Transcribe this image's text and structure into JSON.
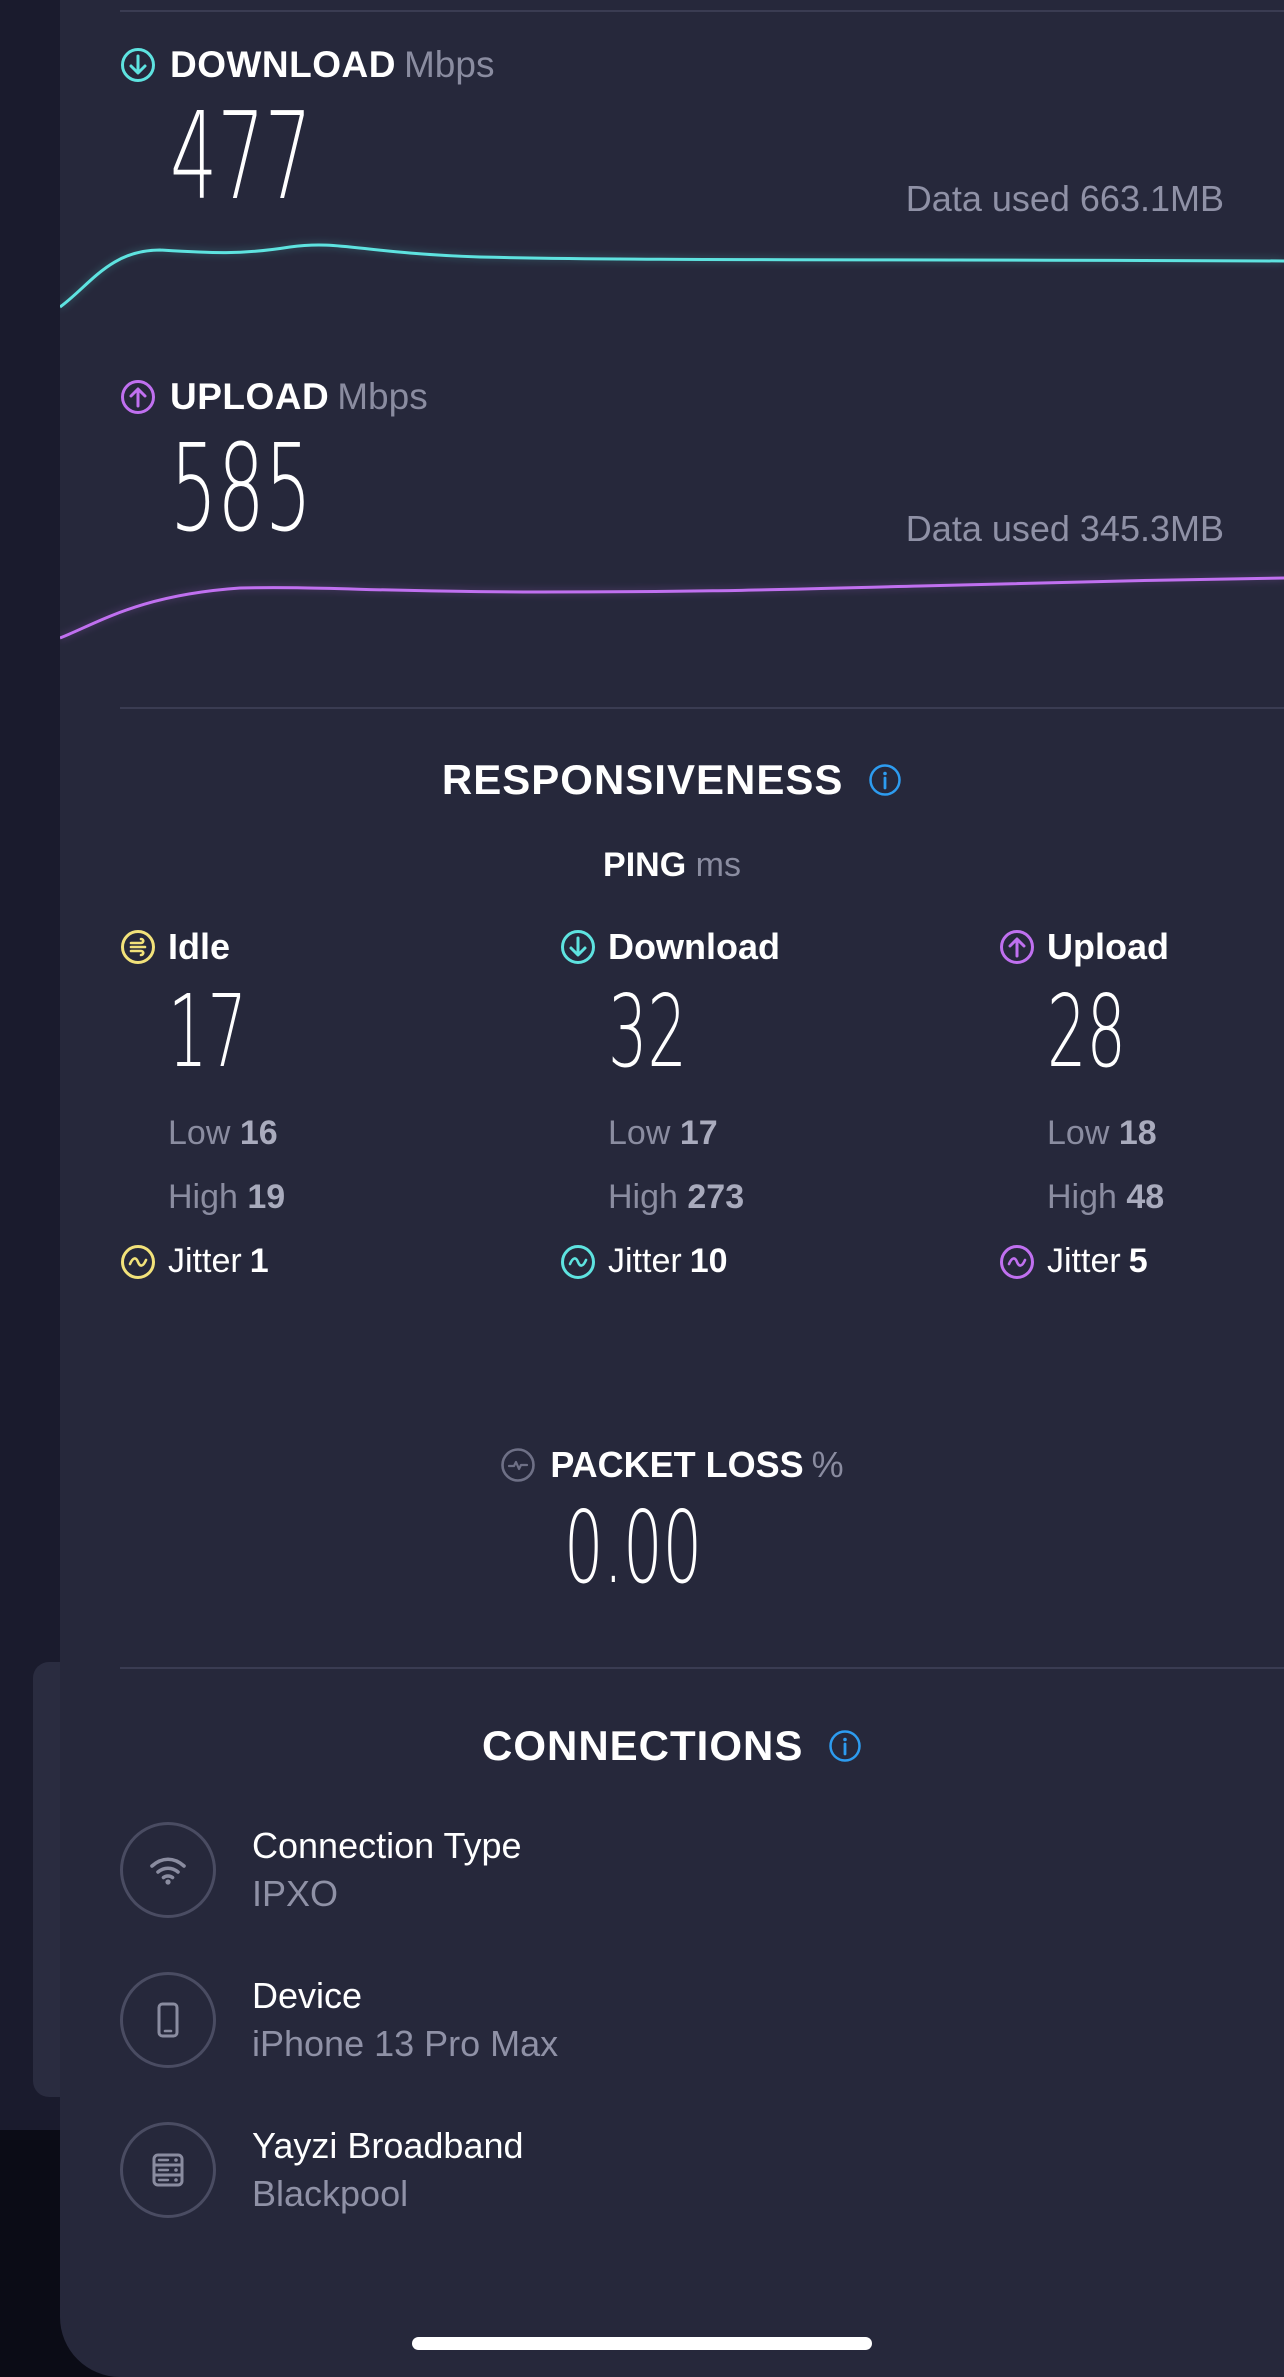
{
  "colors": {
    "accent_download": "#5ee3e0",
    "accent_upload": "#c070f0",
    "accent_idle": "#f2e27a",
    "info_blue": "#2d9cf0",
    "sheet_bg": "#26283b"
  },
  "download": {
    "title": "DOWNLOAD",
    "unit": "Mbps",
    "value": "477",
    "data_used": "Data used 663.1MB",
    "icon": "arrow-down-circle-icon"
  },
  "upload": {
    "title": "UPLOAD",
    "unit": "Mbps",
    "value": "585",
    "data_used": "Data used 345.3MB",
    "icon": "arrow-up-circle-icon"
  },
  "responsiveness": {
    "title": "RESPONSIVENESS",
    "ping_label": "PING",
    "ping_unit": "ms",
    "columns": [
      {
        "label": "Idle",
        "value": "17",
        "low_label": "Low",
        "low": "16",
        "high_label": "High",
        "high": "19",
        "jitter_label": "Jitter",
        "jitter": "1"
      },
      {
        "label": "Download",
        "value": "32",
        "low_label": "Low",
        "low": "17",
        "high_label": "High",
        "high": "273",
        "jitter_label": "Jitter",
        "jitter": "10"
      },
      {
        "label": "Upload",
        "value": "28",
        "low_label": "Low",
        "low": "18",
        "high_label": "High",
        "high": "48",
        "jitter_label": "Jitter",
        "jitter": "5"
      }
    ]
  },
  "packet_loss": {
    "title": "PACKET LOSS",
    "unit": "%",
    "value": "0.00"
  },
  "connections": {
    "title": "CONNECTIONS",
    "items": [
      {
        "label": "Connection Type",
        "value": "IPXO",
        "icon": "wifi-icon"
      },
      {
        "label": "Device",
        "value": "iPhone 13 Pro Max",
        "icon": "phone-icon"
      },
      {
        "label": "Yayzi Broadband",
        "value": "Blackpool",
        "icon": "server-icon"
      }
    ]
  }
}
